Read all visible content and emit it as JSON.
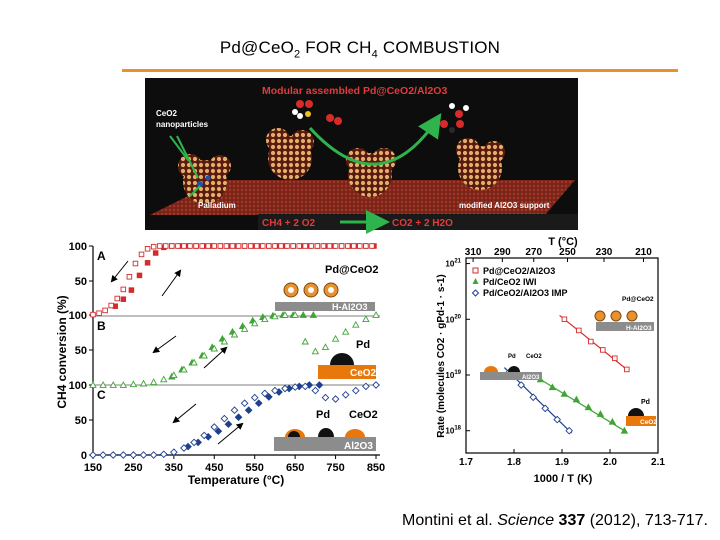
{
  "slide": {
    "title_main": "Pd@CeO",
    "title_sub": "2",
    "title_mid": " FOR CH",
    "title_sub2": "4",
    "title_end": " COMBUSTION",
    "citation_authors": "Montini et al. ",
    "citation_journal": "Science",
    "citation_volume": " 337",
    "citation_rest": " (2012), 713-717."
  },
  "schematic": {
    "title": "Modular assembled Pd@CeO2/Al2O3",
    "label_nanoparticles_1": "CeO2",
    "label_nanoparticles_2": "nanoparticles",
    "label_palladium": "Palladium",
    "label_support": "modified Al2O3 support",
    "reaction_left": "CH4 + 2 O2",
    "reaction_right": "CO2 + 2 H2O"
  },
  "colors": {
    "accent_rule": "#e8912e",
    "red_series": "#d62b2b",
    "green_series": "#3fa535",
    "blue_series": "#1f3f8f",
    "schematic_bg": "#0d0d0d",
    "schematic_title": "#e23b3b"
  },
  "chart_data": [
    {
      "type": "scatter",
      "ylabel": "CH4 conversion (%)",
      "xlabel": "Temperature (°C)",
      "xlim": [
        150,
        850
      ],
      "x_ticks": [
        "150",
        "250",
        "350",
        "450",
        "550",
        "650",
        "750",
        "850"
      ],
      "panel_labels": [
        "A",
        "B",
        "C"
      ],
      "y_ticks": [
        "100",
        "50",
        "0"
      ],
      "ylim": [
        0,
        100
      ],
      "insets": {
        "A": {
          "label": "Pd@CeO2",
          "support": "H-Al2O3"
        },
        "B": {
          "label": "Pd",
          "support": "CeO2"
        },
        "C": {
          "label1": "Pd",
          "label2": "CeO2",
          "support": "Al2O3"
        }
      },
      "series": [
        {
          "panel": "A",
          "style": "heating-filled",
          "color": "red",
          "x": [
            205,
            225,
            245,
            265,
            285,
            305,
            325,
            345,
            365,
            385,
            405,
            425,
            445,
            465,
            485,
            505,
            525,
            545,
            565,
            585,
            605,
            625,
            645,
            665,
            685,
            705,
            725,
            745,
            765,
            785,
            805,
            825,
            845
          ],
          "y": [
            14,
            24,
            37,
            58,
            76,
            90,
            98,
            100,
            100,
            100,
            100,
            100,
            100,
            100,
            100,
            100,
            100,
            100,
            100,
            100,
            100,
            100,
            100,
            100,
            100,
            100,
            100,
            100,
            100,
            100,
            100,
            100,
            100
          ]
        },
        {
          "panel": "A",
          "style": "cooling-open",
          "color": "red",
          "x": [
            150,
            165,
            180,
            195,
            210,
            225,
            240,
            255,
            270,
            285,
            300,
            315,
            330,
            345,
            360,
            375,
            390,
            405,
            420,
            435,
            450,
            465,
            480,
            495,
            510,
            525,
            540,
            555,
            570,
            585,
            600,
            615,
            630,
            645,
            660,
            675,
            690,
            705,
            720,
            735,
            750,
            765,
            780,
            795,
            810,
            825,
            840
          ],
          "y": [
            2,
            4,
            8,
            15,
            25,
            38,
            56,
            75,
            88,
            96,
            99,
            100,
            100,
            100,
            100,
            100,
            100,
            100,
            100,
            100,
            100,
            100,
            100,
            100,
            100,
            100,
            100,
            100,
            100,
            100,
            100,
            100,
            100,
            100,
            100,
            100,
            100,
            100,
            100,
            100,
            100,
            100,
            100,
            100,
            100,
            100,
            100
          ]
        },
        {
          "panel": "B",
          "style": "heating-filled",
          "color": "green",
          "x": [
            345,
            370,
            395,
            420,
            445,
            470,
            495,
            520,
            545,
            570,
            595,
            620,
            645,
            670,
            695
          ],
          "y": [
            12,
            22,
            32,
            42,
            54,
            66,
            76,
            84,
            92,
            97,
            99,
            100,
            100,
            100,
            100
          ]
        },
        {
          "panel": "B",
          "style": "cooling-open",
          "color": "green",
          "x": [
            150,
            175,
            200,
            225,
            250,
            275,
            300,
            325,
            350,
            375,
            400,
            425,
            450,
            475,
            500,
            525,
            550,
            575,
            600,
            625,
            650,
            675,
            700,
            725,
            750,
            775,
            800,
            825,
            850
          ],
          "y": [
            0,
            0,
            0,
            0,
            1,
            2,
            4,
            8,
            14,
            22,
            32,
            42,
            52,
            62,
            72,
            80,
            88,
            94,
            98,
            100,
            100,
            62,
            48,
            54,
            66,
            76,
            86,
            94,
            100
          ]
        },
        {
          "panel": "C",
          "style": "heating-filled",
          "color": "blue",
          "x": [
            385,
            410,
            435,
            460,
            485,
            510,
            535,
            560,
            585,
            610,
            635,
            660,
            685,
            710
          ],
          "y": [
            12,
            18,
            26,
            34,
            44,
            54,
            64,
            74,
            83,
            90,
            95,
            98,
            100,
            100
          ]
        },
        {
          "panel": "C",
          "style": "cooling-open",
          "color": "blue",
          "x": [
            150,
            175,
            200,
            225,
            250,
            275,
            300,
            325,
            350,
            375,
            400,
            425,
            450,
            475,
            500,
            525,
            550,
            575,
            600,
            625,
            650,
            675,
            700,
            725,
            750,
            775,
            800,
            825,
            850
          ],
          "y": [
            0,
            0,
            0,
            0,
            0,
            0,
            0,
            1,
            4,
            10,
            18,
            28,
            40,
            52,
            64,
            74,
            82,
            88,
            92,
            95,
            97,
            98,
            92,
            82,
            80,
            86,
            92,
            98,
            100
          ]
        }
      ]
    },
    {
      "type": "scatter",
      "ylabel": "Rate (molecules CO2 · gPd-1 · s-1)",
      "xlabel": "1000 / T (K)",
      "top_label": "T (°C)",
      "top_ticks": [
        "310",
        "290",
        "270",
        "250",
        "230",
        "210"
      ],
      "x_ticks": [
        "1.7",
        "1.8",
        "1.9",
        "2.0",
        "2.1"
      ],
      "xlim": [
        1.7,
        2.1
      ],
      "y_ticks": [
        "10^21",
        "10^20",
        "10^19",
        "10^18"
      ],
      "ylim_log10": [
        17.6,
        21.1
      ],
      "legend": [
        "Pd@CeO2/Al2O3",
        "Pd/CeO2 IWI",
        "Pd/CeO2/Al2O3 IMP"
      ],
      "legend_placement": "top-left",
      "insets": {
        "top": "Pd@CeO2",
        "top_support": "H-Al2O3",
        "left_pd": "Pd",
        "left_ceo2": "CeO2",
        "left_support": "Al2O3",
        "right_pd": "Pd",
        "right_support": "CeO2"
      },
      "series": [
        {
          "name": "Pd@CeO2/Al2O3",
          "color": "red",
          "marker": "square",
          "x": [
            1.905,
            1.935,
            1.96,
            1.985,
            2.01,
            2.035
          ],
          "y_log10": [
            20.0,
            19.8,
            19.6,
            19.45,
            19.3,
            19.1
          ]
        },
        {
          "name": "Pd/CeO2 IWI",
          "color": "green",
          "marker": "triangle",
          "x": [
            1.855,
            1.88,
            1.905,
            1.93,
            1.955,
            1.98,
            2.005,
            2.03
          ],
          "y_log10": [
            18.92,
            18.78,
            18.66,
            18.56,
            18.42,
            18.3,
            18.16,
            18.0
          ]
        },
        {
          "name": "Pd/CeO2/Al2O3 IMP",
          "color": "blue",
          "marker": "diamond",
          "x": [
            1.79,
            1.815,
            1.84,
            1.865,
            1.89,
            1.915
          ],
          "y_log10": [
            19.05,
            18.82,
            18.6,
            18.4,
            18.2,
            18.0
          ]
        }
      ]
    }
  ]
}
